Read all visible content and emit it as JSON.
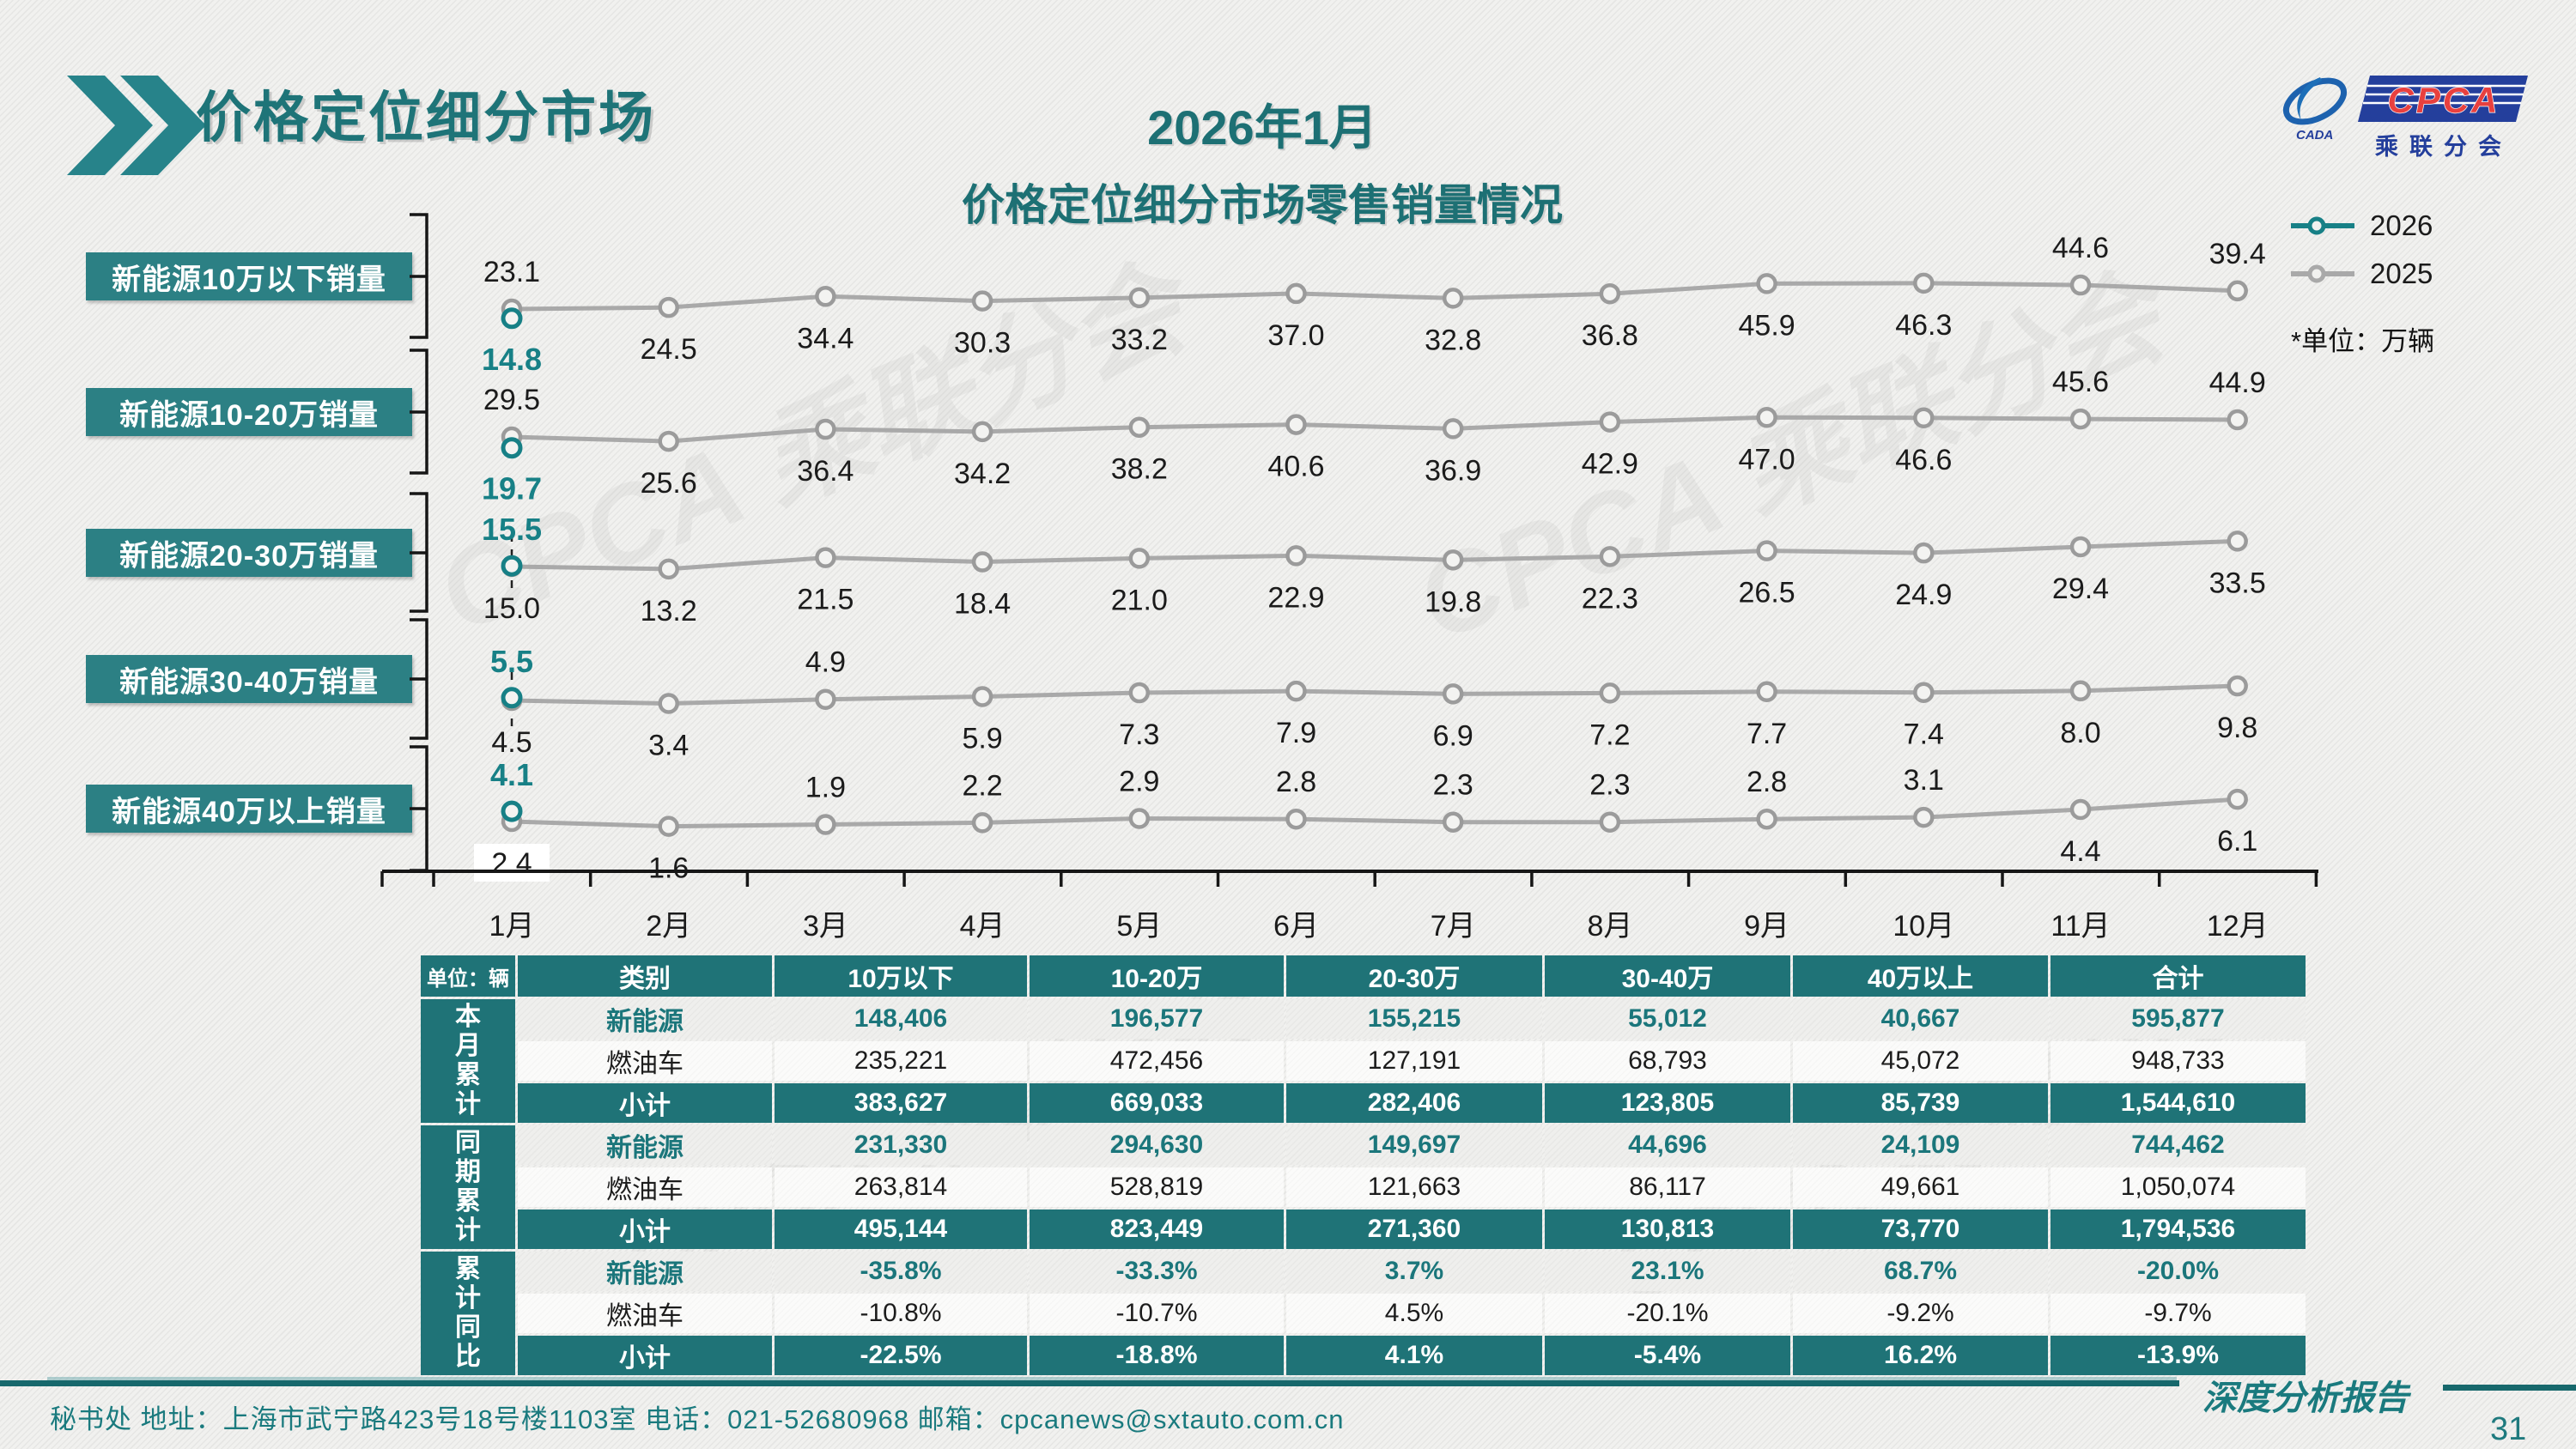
{
  "page": {
    "title": "价格定位细分市场",
    "subtitle_line1": "2026年1月",
    "subtitle_line2": "价格定位细分市场零售销量情况",
    "report_badge": "深度分析报告",
    "page_number": "31",
    "footer": "秘书处   地址：上海市武宁路423号18号楼1103室  电话：021-52680968   邮箱：cpcanews@sxtauto.com.cn"
  },
  "logo": {
    "cpca": "CPCA",
    "cada": "CADA",
    "org": "乘联分会"
  },
  "legend": {
    "items": [
      {
        "label": "2026",
        "color": "#178086"
      },
      {
        "label": "2025",
        "color": "#a9a9a9"
      }
    ],
    "unit_note": "*单位：万辆"
  },
  "colors": {
    "teal_dark": "#1e7478",
    "teal_box": "#2c8084",
    "teal_table": "#1f7377",
    "series_2026": "#178086",
    "series_2025": "#a9a9a9",
    "axis_black": "#161616",
    "logo_blue": "#243f9c",
    "logo_red": "#e8403f",
    "footer_teal": "#1a7a7e"
  },
  "chart_data": {
    "type": "line",
    "title": "2026年1月 价格定位细分市场零售销量情况",
    "unit": "万辆",
    "legend": [
      "2026",
      "2025"
    ],
    "legend_position": "right",
    "grid": false,
    "x": [
      "1月",
      "2月",
      "3月",
      "4月",
      "5月",
      "6月",
      "7月",
      "8月",
      "9月",
      "10月",
      "11月",
      "12月"
    ],
    "bands": [
      {
        "label": "新能源10万以下销量",
        "series": [
          {
            "name": "2026",
            "values": [
              "14.8"
            ]
          },
          {
            "name": "2025",
            "values": [
              "23.1",
              "24.5",
              "34.4",
              "30.3",
              "33.2",
              "37.0",
              "32.8",
              "36.8",
              "45.9",
              "46.3",
              "44.6",
              "39.4"
            ]
          }
        ],
        "sides": [
          "A",
          "B",
          "B",
          "B",
          "B",
          "B",
          "B",
          "B",
          "B",
          "B",
          "A",
          "A"
        ],
        "side_2026": "B",
        "jan_label_bg": false,
        "geom": {
          "bracket": [
            250,
            393
          ],
          "mid": 322,
          "anchor": 360,
          "scale": 1.3,
          "dash": null
        }
      },
      {
        "label": "新能源10-20万销量",
        "series": [
          {
            "name": "2026",
            "values": [
              "19.7"
            ]
          },
          {
            "name": "2025",
            "values": [
              "29.5",
              "25.6",
              "36.4",
              "34.2",
              "38.2",
              "40.6",
              "36.9",
              "42.9",
              "47.0",
              "46.6",
              "45.6",
              "44.9"
            ]
          }
        ],
        "sides": [
          "A",
          "B",
          "B",
          "B",
          "B",
          "B",
          "B",
          "B",
          "B",
          "B",
          "A",
          "A"
        ],
        "side_2026": "B",
        "jan_label_bg": false,
        "geom": {
          "bracket": [
            408,
            551
          ],
          "mid": 480,
          "anchor": 509,
          "scale": 1.3,
          "dash": null
        }
      },
      {
        "label": "新能源20-30万销量",
        "series": [
          {
            "name": "2026",
            "values": [
              "15.5"
            ]
          },
          {
            "name": "2025",
            "values": [
              "15.0",
              "13.2",
              "21.5",
              "18.4",
              "21.0",
              "22.9",
              "19.8",
              "22.3",
              "26.5",
              "24.9",
              "29.4",
              "33.5"
            ]
          }
        ],
        "sides": [
          "B",
          "B",
          "B",
          "B",
          "B",
          "B",
          "B",
          "B",
          "B",
          "B",
          "B",
          "B"
        ],
        "side_2026": "A",
        "jan_label_bg": false,
        "geom": {
          "bracket": [
            575,
            712
          ],
          "mid": 644,
          "anchor": 660,
          "scale": 1.6,
          "dash": [
            622,
            692
          ]
        }
      },
      {
        "label": "新能源30-40万销量",
        "series": [
          {
            "name": "2026",
            "values": [
              "5.5"
            ]
          },
          {
            "name": "2025",
            "values": [
              "4.5",
              "3.4",
              "4.9",
              "5.9",
              "7.3",
              "7.9",
              "6.9",
              "7.2",
              "7.7",
              "7.4",
              "8.0",
              "9.8"
            ]
          }
        ],
        "sides": [
          "B",
          "B",
          "A",
          "B",
          "B",
          "B",
          "B",
          "B",
          "B",
          "B",
          "B",
          "B"
        ],
        "side_2026": "A",
        "jan_label_bg": false,
        "geom": {
          "bracket": [
            722,
            860
          ],
          "mid": 791,
          "anchor": 816,
          "scale": 3.2,
          "dash": [
            783,
            852
          ]
        }
      },
      {
        "label": "新能源40万以上销量",
        "series": [
          {
            "name": "2026",
            "values": [
              "4.1"
            ]
          },
          {
            "name": "2025",
            "values": [
              "2.4",
              "1.6",
              "1.9",
              "2.2",
              "2.9",
              "2.8",
              "2.3",
              "2.3",
              "2.8",
              "3.1",
              "4.4",
              "6.1"
            ]
          }
        ],
        "sides": [
          "B",
          "B",
          "A",
          "A",
          "A",
          "A",
          "A",
          "A",
          "A",
          "A",
          "B",
          "B"
        ],
        "side_2026": "A",
        "jan_label_bg": true,
        "geom": {
          "bracket": [
            870,
            1014
          ],
          "mid": 942,
          "anchor": 957,
          "scale": 7,
          "dash": null
        }
      }
    ]
  },
  "table": {
    "unit_label": "单位：辆",
    "col_headers": [
      "类别",
      "10万以下",
      "10-20万",
      "20-30万",
      "30-40万",
      "40万以上",
      "合计"
    ],
    "groups": [
      {
        "label": "本月累计",
        "rows": [
          {
            "name": "新能源",
            "style": "nev",
            "cells": [
              "148,406",
              "196,577",
              "155,215",
              "55,012",
              "40,667",
              "595,877"
            ]
          },
          {
            "name": "燃油车",
            "style": "ice",
            "cells": [
              "235,221",
              "472,456",
              "127,191",
              "68,793",
              "45,072",
              "948,733"
            ]
          },
          {
            "name": "小计",
            "style": "sub",
            "cells": [
              "383,627",
              "669,033",
              "282,406",
              "123,805",
              "85,739",
              "1,544,610"
            ]
          }
        ]
      },
      {
        "label": "同期累计",
        "rows": [
          {
            "name": "新能源",
            "style": "nev",
            "cells": [
              "231,330",
              "294,630",
              "149,697",
              "44,696",
              "24,109",
              "744,462"
            ]
          },
          {
            "name": "燃油车",
            "style": "ice",
            "cells": [
              "263,814",
              "528,819",
              "121,663",
              "86,117",
              "49,661",
              "1,050,074"
            ]
          },
          {
            "name": "小计",
            "style": "sub",
            "cells": [
              "495,144",
              "823,449",
              "271,360",
              "130,813",
              "73,770",
              "1,794,536"
            ]
          }
        ]
      },
      {
        "label": "累计同比",
        "rows": [
          {
            "name": "新能源",
            "style": "nev",
            "cells": [
              "-35.8%",
              "-33.3%",
              "3.7%",
              "23.1%",
              "68.7%",
              "-20.0%"
            ]
          },
          {
            "name": "燃油车",
            "style": "ice",
            "cells": [
              "-10.8%",
              "-10.7%",
              "4.5%",
              "-20.1%",
              "-9.2%",
              "-9.7%"
            ]
          },
          {
            "name": "小计",
            "style": "sub",
            "cells": [
              "-22.5%",
              "-18.8%",
              "4.1%",
              "-5.4%",
              "16.2%",
              "-13.9%"
            ]
          }
        ]
      }
    ]
  }
}
